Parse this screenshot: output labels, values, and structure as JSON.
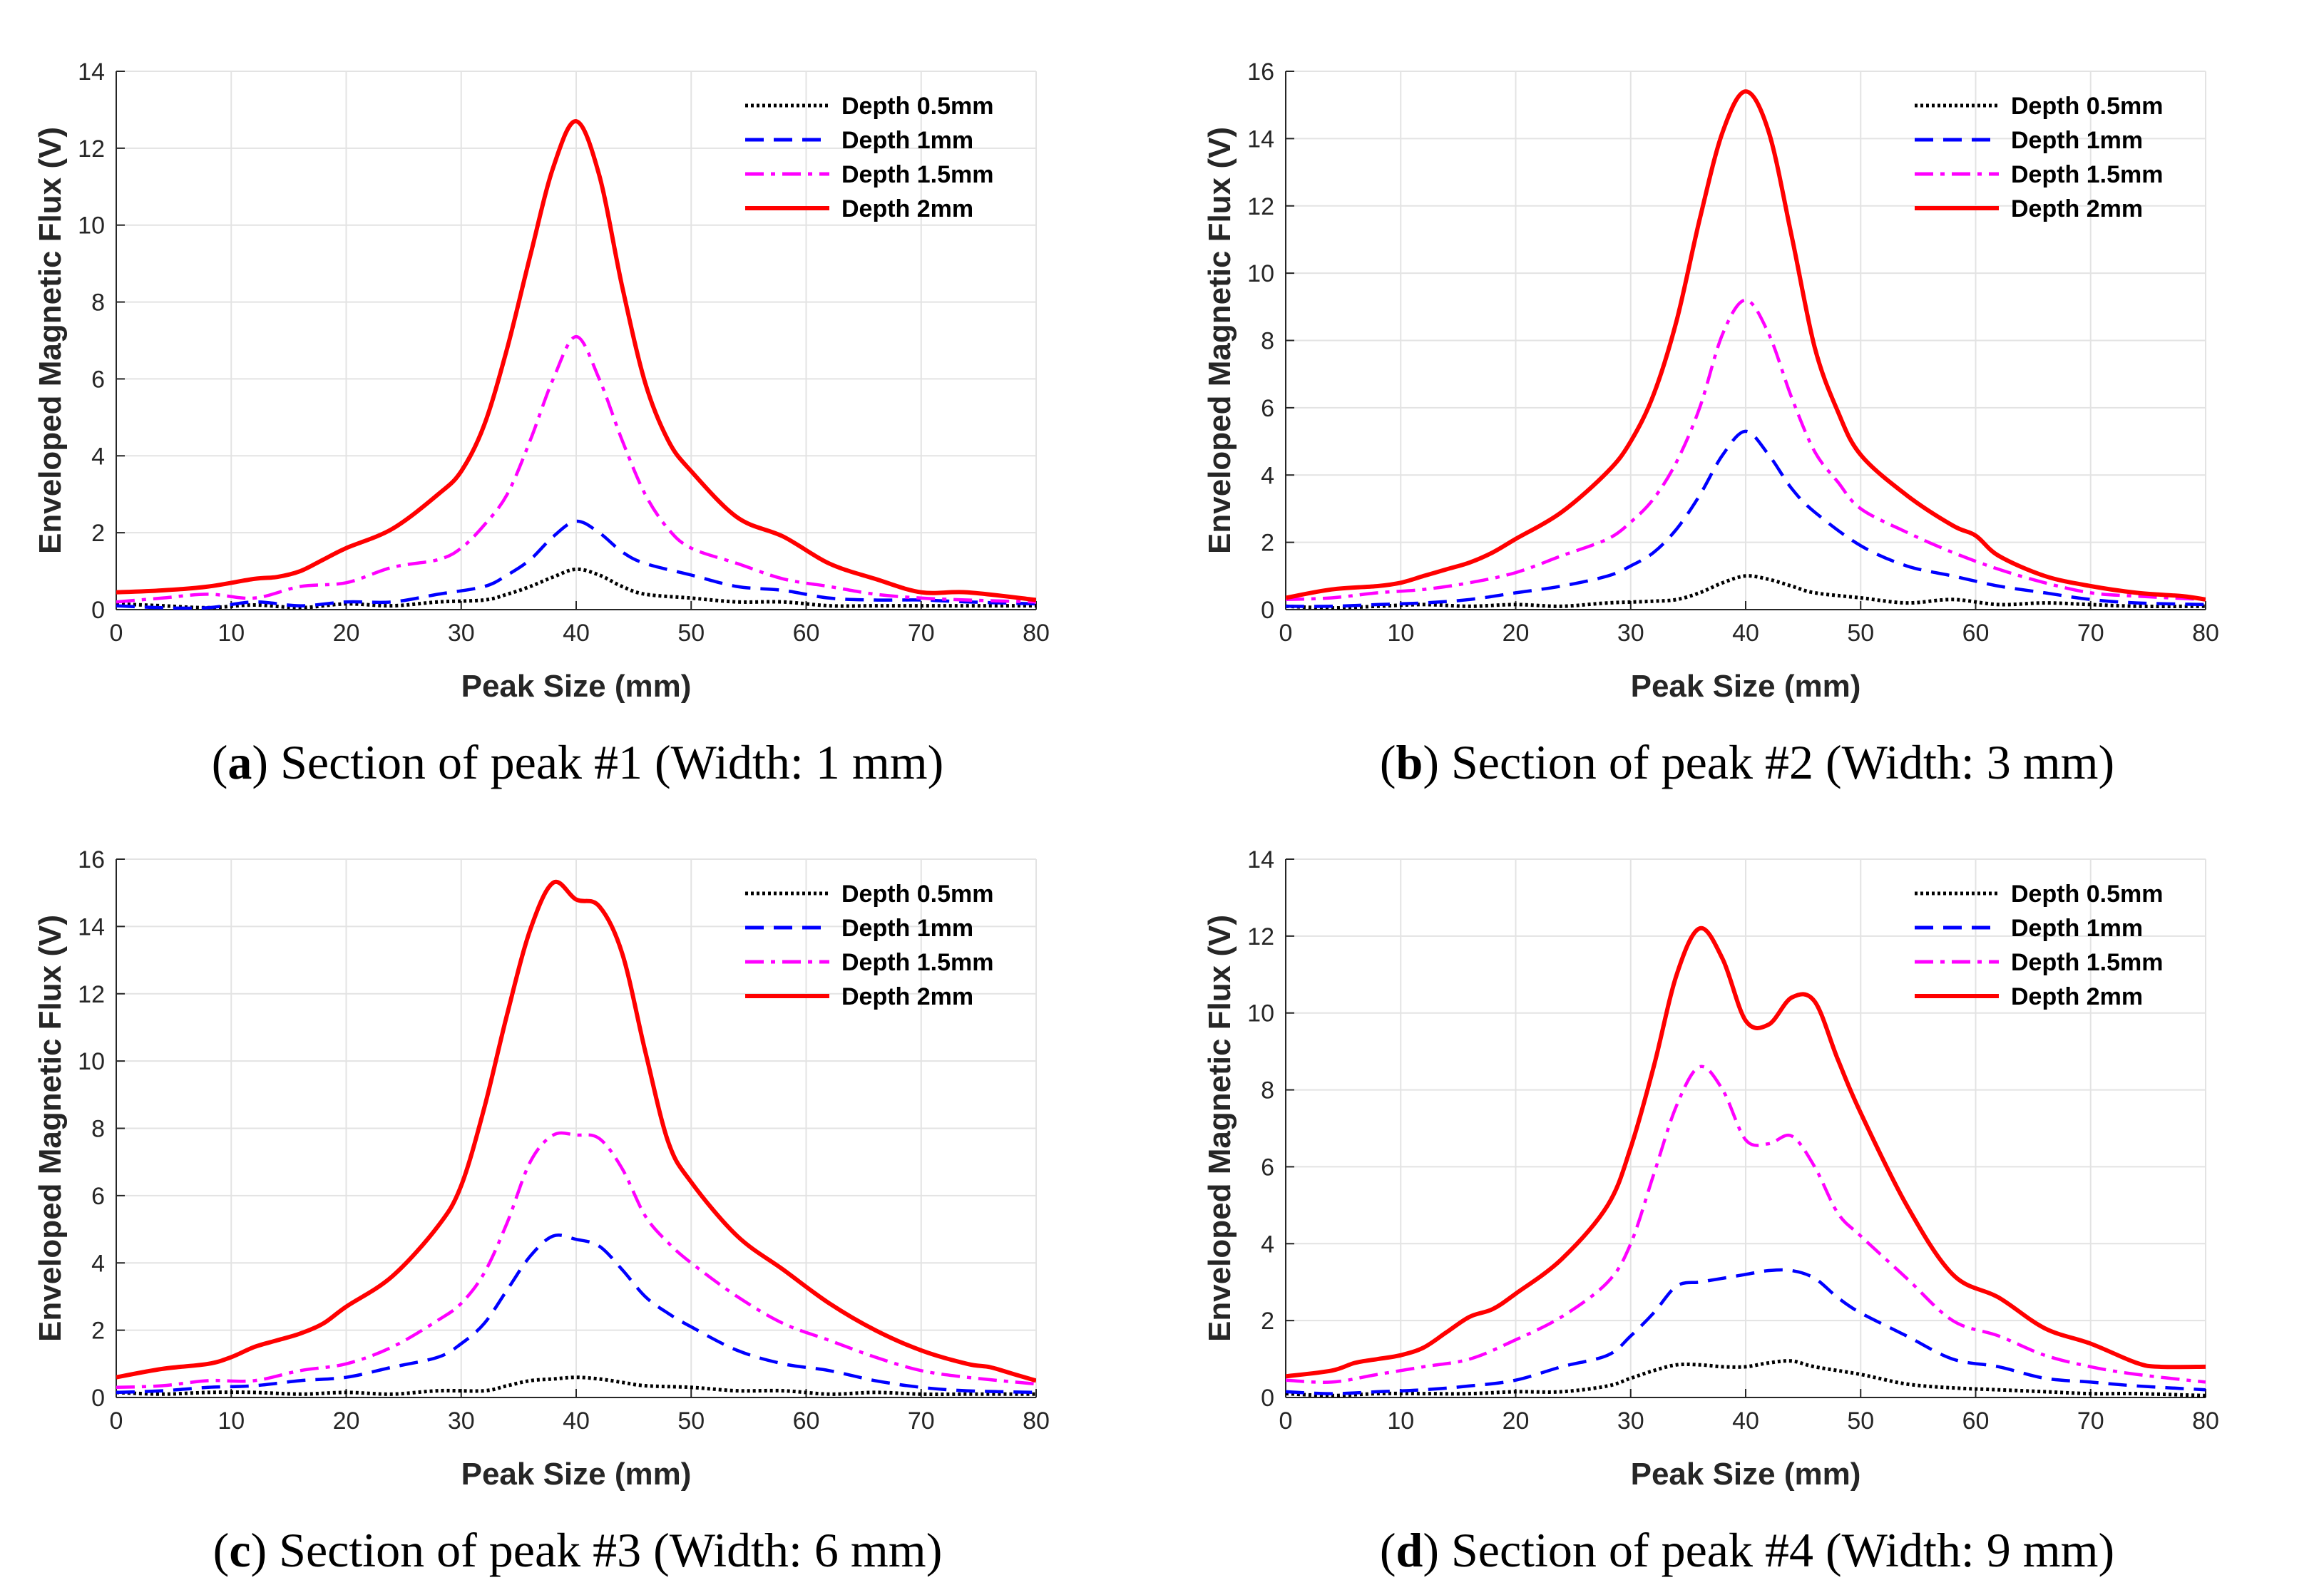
{
  "chart_data": [
    {
      "type": "line",
      "panel_letter": "a",
      "caption_text": "Section of peak #1 (Width: 1 mm)",
      "xlabel": "Peak Size (mm)",
      "ylabel": "Enveloped Magnetic Flux (V)",
      "xlim": [
        0,
        80
      ],
      "ylim": [
        0,
        14
      ],
      "xticks": [
        0,
        10,
        20,
        30,
        40,
        50,
        60,
        70,
        80
      ],
      "yticks": [
        0,
        2,
        4,
        6,
        8,
        10,
        12,
        14
      ],
      "grid": true,
      "legend_position": "top-right",
      "series": [
        {
          "name": "Depth 0.5mm",
          "color": "#000000",
          "dash": "dotted",
          "x": [
            0,
            4,
            8,
            12,
            16,
            20,
            24,
            28,
            32,
            34,
            36,
            38,
            40,
            42,
            44,
            46,
            50,
            54,
            58,
            62,
            66,
            70,
            74,
            80
          ],
          "y": [
            0.15,
            0.1,
            0.05,
            0.12,
            0.05,
            0.15,
            0.1,
            0.2,
            0.25,
            0.4,
            0.6,
            0.85,
            1.05,
            0.9,
            0.6,
            0.4,
            0.3,
            0.2,
            0.2,
            0.1,
            0.1,
            0.1,
            0.1,
            0.1
          ]
        },
        {
          "name": "Depth 1mm",
          "color": "#0000ff",
          "dash": "dashed",
          "x": [
            0,
            4,
            8,
            12,
            16,
            20,
            24,
            28,
            32,
            34,
            36,
            38,
            40,
            42,
            44,
            46,
            50,
            54,
            58,
            62,
            66,
            70,
            74,
            80
          ],
          "y": [
            0.1,
            0.05,
            0.05,
            0.2,
            0.1,
            0.2,
            0.2,
            0.4,
            0.6,
            0.9,
            1.3,
            1.9,
            2.3,
            2.0,
            1.5,
            1.2,
            0.9,
            0.6,
            0.5,
            0.3,
            0.25,
            0.25,
            0.2,
            0.15
          ]
        },
        {
          "name": "Depth 1.5mm",
          "color": "#ff00ff",
          "dash": "dashdot",
          "x": [
            0,
            4,
            8,
            12,
            16,
            20,
            24,
            28,
            30,
            32,
            34,
            36,
            38,
            40,
            42,
            44,
            46,
            48,
            50,
            54,
            58,
            62,
            66,
            70,
            74,
            80
          ],
          "y": [
            0.2,
            0.3,
            0.4,
            0.3,
            0.6,
            0.7,
            1.1,
            1.3,
            1.6,
            2.2,
            3.0,
            4.4,
            6.0,
            7.1,
            6.0,
            4.4,
            3.0,
            2.1,
            1.6,
            1.2,
            0.8,
            0.6,
            0.4,
            0.3,
            0.25,
            0.2
          ]
        },
        {
          "name": "Depth 2mm",
          "color": "#ff0000",
          "dash": "solid",
          "x": [
            0,
            4,
            8,
            12,
            14,
            16,
            18,
            20,
            24,
            28,
            30,
            32,
            34,
            36,
            38,
            40,
            42,
            44,
            46,
            48,
            50,
            54,
            58,
            62,
            66,
            70,
            74,
            80
          ],
          "y": [
            0.45,
            0.5,
            0.6,
            0.8,
            0.85,
            1.0,
            1.3,
            1.6,
            2.1,
            3.0,
            3.6,
            4.8,
            6.8,
            9.2,
            11.5,
            12.7,
            11.3,
            8.4,
            5.9,
            4.4,
            3.6,
            2.4,
            1.9,
            1.2,
            0.8,
            0.45,
            0.45,
            0.25
          ]
        }
      ]
    },
    {
      "type": "line",
      "panel_letter": "b",
      "caption_text": "Section of peak #2 (Width: 3 mm)",
      "xlabel": "Peak Size (mm)",
      "ylabel": "Enveloped Magnetic Flux (V)",
      "xlim": [
        0,
        80
      ],
      "ylim": [
        0,
        16
      ],
      "xticks": [
        0,
        10,
        20,
        30,
        40,
        50,
        60,
        70,
        80
      ],
      "yticks": [
        0,
        2,
        4,
        6,
        8,
        10,
        12,
        14,
        16
      ],
      "grid": true,
      "legend_position": "top-right",
      "series": [
        {
          "name": "Depth 0.5mm",
          "color": "#000000",
          "dash": "dotted",
          "x": [
            0,
            4,
            8,
            12,
            16,
            20,
            24,
            28,
            32,
            34,
            36,
            38,
            40,
            42,
            44,
            46,
            50,
            54,
            58,
            62,
            66,
            70,
            74,
            80
          ],
          "y": [
            0.1,
            0.05,
            0.1,
            0.15,
            0.1,
            0.15,
            0.1,
            0.2,
            0.25,
            0.3,
            0.5,
            0.8,
            1.0,
            0.9,
            0.7,
            0.5,
            0.35,
            0.2,
            0.3,
            0.15,
            0.2,
            0.15,
            0.1,
            0.1
          ]
        },
        {
          "name": "Depth 1mm",
          "color": "#0000ff",
          "dash": "dashed",
          "x": [
            0,
            4,
            8,
            12,
            16,
            20,
            24,
            28,
            30,
            32,
            34,
            36,
            38,
            40,
            42,
            44,
            46,
            50,
            54,
            58,
            62,
            66,
            70,
            74,
            80
          ],
          "y": [
            0.1,
            0.1,
            0.15,
            0.2,
            0.3,
            0.5,
            0.7,
            1.0,
            1.3,
            1.7,
            2.4,
            3.4,
            4.6,
            5.3,
            4.6,
            3.6,
            2.9,
            1.9,
            1.3,
            1.0,
            0.7,
            0.5,
            0.3,
            0.2,
            0.15
          ]
        },
        {
          "name": "Depth 1.5mm",
          "color": "#ff00ff",
          "dash": "dashdot",
          "x": [
            0,
            4,
            8,
            12,
            16,
            20,
            24,
            28,
            30,
            32,
            34,
            36,
            38,
            40,
            42,
            44,
            46,
            48,
            50,
            54,
            58,
            62,
            66,
            70,
            74,
            80
          ],
          "y": [
            0.3,
            0.35,
            0.5,
            0.6,
            0.8,
            1.1,
            1.6,
            2.1,
            2.6,
            3.3,
            4.4,
            6.0,
            8.2,
            9.2,
            8.2,
            6.3,
            4.7,
            3.8,
            3.0,
            2.3,
            1.7,
            1.2,
            0.8,
            0.5,
            0.4,
            0.3
          ]
        },
        {
          "name": "Depth 2mm",
          "color": "#ff0000",
          "dash": "solid",
          "x": [
            0,
            4,
            8,
            10,
            12,
            14,
            16,
            18,
            20,
            24,
            28,
            30,
            32,
            34,
            36,
            38,
            40,
            42,
            44,
            46,
            48,
            50,
            54,
            58,
            60,
            62,
            66,
            70,
            74,
            78,
            80
          ],
          "y": [
            0.35,
            0.6,
            0.7,
            0.8,
            1.0,
            1.2,
            1.4,
            1.7,
            2.1,
            2.9,
            4.1,
            5.0,
            6.4,
            8.6,
            11.6,
            14.2,
            15.4,
            14.2,
            11.1,
            7.8,
            5.9,
            4.6,
            3.4,
            2.5,
            2.2,
            1.6,
            1.0,
            0.7,
            0.5,
            0.4,
            0.3
          ]
        }
      ]
    },
    {
      "type": "line",
      "panel_letter": "c",
      "caption_text": "Section of peak #3 (Width: 6 mm)",
      "xlabel": "Peak Size (mm)",
      "ylabel": "Enveloped Magnetic Flux (V)",
      "xlim": [
        0,
        80
      ],
      "ylim": [
        0,
        16
      ],
      "xticks": [
        0,
        10,
        20,
        30,
        40,
        50,
        60,
        70,
        80
      ],
      "yticks": [
        0,
        2,
        4,
        6,
        8,
        10,
        12,
        14,
        16
      ],
      "grid": true,
      "legend_position": "top-right",
      "series": [
        {
          "name": "Depth 0.5mm",
          "color": "#000000",
          "dash": "dotted",
          "x": [
            0,
            4,
            8,
            12,
            16,
            20,
            24,
            28,
            32,
            34,
            36,
            38,
            40,
            42,
            44,
            46,
            50,
            54,
            58,
            62,
            66,
            70,
            74,
            80
          ],
          "y": [
            0.15,
            0.1,
            0.15,
            0.15,
            0.1,
            0.15,
            0.1,
            0.2,
            0.2,
            0.35,
            0.5,
            0.55,
            0.6,
            0.55,
            0.45,
            0.35,
            0.3,
            0.2,
            0.2,
            0.1,
            0.15,
            0.1,
            0.1,
            0.1
          ]
        },
        {
          "name": "Depth 1mm",
          "color": "#0000ff",
          "dash": "dashed",
          "x": [
            0,
            4,
            8,
            12,
            16,
            20,
            24,
            28,
            30,
            32,
            34,
            36,
            38,
            40,
            42,
            44,
            46,
            48,
            50,
            54,
            58,
            62,
            66,
            70,
            74,
            80
          ],
          "y": [
            0.15,
            0.2,
            0.3,
            0.35,
            0.5,
            0.6,
            0.9,
            1.2,
            1.6,
            2.2,
            3.2,
            4.2,
            4.8,
            4.7,
            4.5,
            3.8,
            3.0,
            2.5,
            2.1,
            1.4,
            1.0,
            0.8,
            0.5,
            0.3,
            0.2,
            0.15
          ]
        },
        {
          "name": "Depth 1.5mm",
          "color": "#ff00ff",
          "dash": "dashdot",
          "x": [
            0,
            4,
            8,
            12,
            16,
            20,
            24,
            28,
            30,
            32,
            34,
            36,
            38,
            40,
            42,
            44,
            46,
            48,
            50,
            54,
            58,
            62,
            66,
            70,
            74,
            80
          ],
          "y": [
            0.3,
            0.35,
            0.5,
            0.5,
            0.8,
            1.0,
            1.5,
            2.3,
            2.8,
            3.7,
            5.2,
            7.0,
            7.8,
            7.8,
            7.7,
            6.8,
            5.4,
            4.6,
            4.0,
            3.0,
            2.2,
            1.7,
            1.2,
            0.8,
            0.6,
            0.4
          ]
        },
        {
          "name": "Depth 2mm",
          "color": "#ff0000",
          "dash": "solid",
          "x": [
            0,
            4,
            8,
            10,
            12,
            14,
            16,
            18,
            20,
            24,
            28,
            30,
            32,
            34,
            36,
            38,
            40,
            42,
            44,
            46,
            48,
            50,
            54,
            58,
            62,
            66,
            70,
            74,
            76,
            78,
            80
          ],
          "y": [
            0.6,
            0.85,
            1.0,
            1.2,
            1.5,
            1.7,
            1.9,
            2.2,
            2.7,
            3.6,
            5.1,
            6.3,
            8.6,
            11.4,
            13.9,
            15.3,
            14.8,
            14.6,
            13.2,
            10.3,
            7.6,
            6.4,
            4.8,
            3.8,
            2.8,
            2.0,
            1.4,
            1.0,
            0.9,
            0.7,
            0.5
          ]
        }
      ]
    },
    {
      "type": "line",
      "panel_letter": "d",
      "caption_text": "Section of peak #4 (Width: 9 mm)",
      "xlabel": "Peak Size (mm)",
      "ylabel": "Enveloped Magnetic Flux (V)",
      "xlim": [
        0,
        80
      ],
      "ylim": [
        0,
        14
      ],
      "xticks": [
        0,
        10,
        20,
        30,
        40,
        50,
        60,
        70,
        80
      ],
      "yticks": [
        0,
        2,
        4,
        6,
        8,
        10,
        12,
        14
      ],
      "grid": true,
      "legend_position": "top-right",
      "series": [
        {
          "name": "Depth 0.5mm",
          "color": "#000000",
          "dash": "dotted",
          "x": [
            0,
            4,
            8,
            12,
            16,
            20,
            24,
            28,
            30,
            32,
            34,
            36,
            38,
            40,
            42,
            44,
            46,
            50,
            54,
            58,
            62,
            66,
            70,
            74,
            80
          ],
          "y": [
            0.1,
            0.05,
            0.1,
            0.1,
            0.1,
            0.15,
            0.15,
            0.3,
            0.5,
            0.7,
            0.85,
            0.85,
            0.8,
            0.8,
            0.9,
            0.95,
            0.8,
            0.6,
            0.35,
            0.25,
            0.2,
            0.15,
            0.1,
            0.1,
            0.05
          ]
        },
        {
          "name": "Depth 1mm",
          "color": "#0000ff",
          "dash": "dashed",
          "x": [
            0,
            4,
            8,
            12,
            16,
            20,
            24,
            28,
            30,
            32,
            34,
            36,
            38,
            40,
            42,
            44,
            46,
            48,
            50,
            54,
            58,
            62,
            66,
            70,
            74,
            80
          ],
          "y": [
            0.15,
            0.1,
            0.15,
            0.2,
            0.3,
            0.45,
            0.8,
            1.1,
            1.6,
            2.2,
            2.9,
            3.0,
            3.1,
            3.2,
            3.3,
            3.3,
            3.1,
            2.6,
            2.2,
            1.6,
            1.0,
            0.8,
            0.5,
            0.4,
            0.3,
            0.2
          ]
        },
        {
          "name": "Depth 1.5mm",
          "color": "#ff00ff",
          "dash": "dashdot",
          "x": [
            0,
            4,
            8,
            12,
            16,
            20,
            24,
            28,
            30,
            32,
            34,
            36,
            38,
            40,
            42,
            44,
            46,
            48,
            50,
            54,
            58,
            62,
            66,
            70,
            74,
            80
          ],
          "y": [
            0.45,
            0.4,
            0.6,
            0.8,
            1.0,
            1.5,
            2.1,
            3.0,
            4.0,
            5.8,
            7.6,
            8.6,
            8.0,
            6.7,
            6.6,
            6.8,
            6.0,
            4.8,
            4.2,
            3.1,
            2.0,
            1.6,
            1.1,
            0.8,
            0.6,
            0.4
          ]
        },
        {
          "name": "Depth 2mm",
          "color": "#ff0000",
          "dash": "solid",
          "x": [
            0,
            4,
            6,
            8,
            10,
            12,
            14,
            16,
            18,
            20,
            24,
            28,
            30,
            32,
            34,
            36,
            38,
            40,
            42,
            44,
            46,
            48,
            50,
            54,
            58,
            62,
            66,
            70,
            74,
            76,
            80
          ],
          "y": [
            0.55,
            0.7,
            0.9,
            1.0,
            1.1,
            1.3,
            1.7,
            2.1,
            2.3,
            2.7,
            3.6,
            5.0,
            6.5,
            8.6,
            11.0,
            12.2,
            11.4,
            9.8,
            9.7,
            10.4,
            10.3,
            8.8,
            7.4,
            5.0,
            3.2,
            2.6,
            1.8,
            1.4,
            0.9,
            0.8,
            0.8
          ]
        }
      ]
    }
  ]
}
